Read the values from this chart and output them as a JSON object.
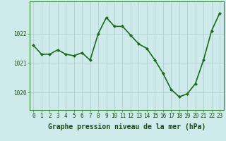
{
  "x": [
    0,
    1,
    2,
    3,
    4,
    5,
    6,
    7,
    8,
    9,
    10,
    11,
    12,
    13,
    14,
    15,
    16,
    17,
    18,
    19,
    20,
    21,
    22,
    23
  ],
  "y": [
    1021.6,
    1021.3,
    1021.3,
    1021.45,
    1021.3,
    1021.25,
    1021.35,
    1021.1,
    1022.0,
    1022.55,
    1022.25,
    1022.25,
    1021.95,
    1021.65,
    1021.5,
    1021.1,
    1020.65,
    1020.1,
    1019.85,
    1019.95,
    1020.3,
    1021.1,
    1022.1,
    1022.7
  ],
  "line_color": "#1a6b1a",
  "marker": "D",
  "marker_size": 2.0,
  "linewidth": 1.2,
  "bg_color": "#ceeaea",
  "plot_bg_color": "#ceeaea",
  "grid_color": "#aacccc",
  "grid_linewidth": 0.5,
  "xlabel": "Graphe pression niveau de la mer (hPa)",
  "xlabel_fontsize": 7,
  "xlabel_color": "#1a4a1a",
  "yticks": [
    1020,
    1021,
    1022
  ],
  "ylim": [
    1019.4,
    1023.1
  ],
  "xlim": [
    -0.5,
    23.5
  ],
  "xticks": [
    0,
    1,
    2,
    3,
    4,
    5,
    6,
    7,
    8,
    9,
    10,
    11,
    12,
    13,
    14,
    15,
    16,
    17,
    18,
    19,
    20,
    21,
    22,
    23
  ],
  "tick_fontsize": 5.5,
  "tick_color": "#1a4a1a",
  "spine_color": "#338833"
}
